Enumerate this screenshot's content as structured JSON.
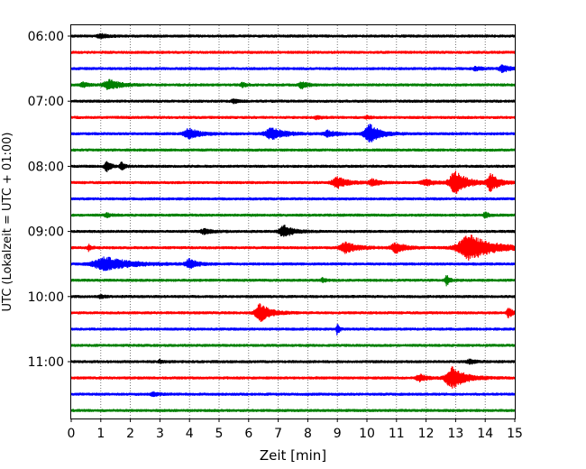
{
  "chart_data": {
    "type": "line",
    "title": "",
    "xlabel": "Zeit  [min]",
    "ylabel": "UTC (Lokalzeit = UTC + 01:00)",
    "xlim": [
      0,
      15
    ],
    "x_ticks": [
      "0",
      "1",
      "2",
      "3",
      "4",
      "5",
      "6",
      "7",
      "8",
      "9",
      "10",
      "11",
      "12",
      "13",
      "14",
      "15"
    ],
    "y_ticks": [
      {
        "label": "06:00",
        "trace_index": 0
      },
      {
        "label": "07:00",
        "trace_index": 4
      },
      {
        "label": "08:00",
        "trace_index": 8
      },
      {
        "label": "09:00",
        "trace_index": 12
      },
      {
        "label": "10:00",
        "trace_index": 16
      },
      {
        "label": "11:00",
        "trace_index": 20
      }
    ],
    "vertical_grid": "dotted",
    "trace_interval_minutes": 15,
    "trace_colors": [
      "#000000",
      "#ff0000",
      "#0000ff",
      "#008000"
    ],
    "series": [
      {
        "start": "06:00",
        "color": "#000000",
        "events": [
          {
            "t": 1.0,
            "amp": 0.2,
            "dur": 0.5
          }
        ]
      },
      {
        "start": "06:15",
        "color": "#ff0000",
        "events": []
      },
      {
        "start": "06:30",
        "color": "#0000ff",
        "events": [
          {
            "t": 14.6,
            "amp": 0.35,
            "dur": 0.5
          },
          {
            "t": 13.7,
            "amp": 0.2,
            "dur": 0.4
          }
        ]
      },
      {
        "start": "06:45",
        "color": "#008000",
        "events": [
          {
            "t": 1.3,
            "amp": 0.5,
            "dur": 0.8
          },
          {
            "t": 0.4,
            "amp": 0.3,
            "dur": 0.3
          },
          {
            "t": 7.8,
            "amp": 0.35,
            "dur": 0.4
          },
          {
            "t": 5.8,
            "amp": 0.2,
            "dur": 0.3
          }
        ]
      },
      {
        "start": "07:00",
        "color": "#000000",
        "events": [
          {
            "t": 5.5,
            "amp": 0.2,
            "dur": 0.3
          }
        ]
      },
      {
        "start": "07:15",
        "color": "#ff0000",
        "events": [
          {
            "t": 8.3,
            "amp": 0.15,
            "dur": 0.3
          },
          {
            "t": 10.0,
            "amp": 0.15,
            "dur": 0.3
          }
        ]
      },
      {
        "start": "07:30",
        "color": "#0000ff",
        "events": [
          {
            "t": 4.0,
            "amp": 0.55,
            "dur": 0.7
          },
          {
            "t": 6.8,
            "amp": 0.6,
            "dur": 0.9
          },
          {
            "t": 10.1,
            "amp": 1.0,
            "dur": 0.7
          },
          {
            "t": 8.7,
            "amp": 0.3,
            "dur": 0.6
          }
        ]
      },
      {
        "start": "07:45",
        "color": "#008000",
        "events": []
      },
      {
        "start": "08:00",
        "color": "#000000",
        "events": [
          {
            "t": 1.2,
            "amp": 0.55,
            "dur": 0.3
          },
          {
            "t": 1.7,
            "amp": 0.45,
            "dur": 0.2
          }
        ]
      },
      {
        "start": "08:15",
        "color": "#ff0000",
        "events": [
          {
            "t": 9.0,
            "amp": 0.6,
            "dur": 0.7
          },
          {
            "t": 10.2,
            "amp": 0.35,
            "dur": 0.5
          },
          {
            "t": 12.0,
            "amp": 0.3,
            "dur": 0.6
          },
          {
            "t": 13.0,
            "amp": 1.25,
            "dur": 0.8
          },
          {
            "t": 14.2,
            "amp": 1.0,
            "dur": 0.5
          }
        ]
      },
      {
        "start": "08:30",
        "color": "#0000ff",
        "events": []
      },
      {
        "start": "08:45",
        "color": "#008000",
        "events": [
          {
            "t": 14.0,
            "amp": 0.4,
            "dur": 0.2
          },
          {
            "t": 1.2,
            "amp": 0.2,
            "dur": 0.3
          }
        ]
      },
      {
        "start": "09:00",
        "color": "#000000",
        "events": [
          {
            "t": 7.2,
            "amp": 0.65,
            "dur": 0.6
          },
          {
            "t": 4.5,
            "amp": 0.25,
            "dur": 0.5
          }
        ]
      },
      {
        "start": "09:15",
        "color": "#ff0000",
        "events": [
          {
            "t": 0.6,
            "amp": 0.35,
            "dur": 0.2
          },
          {
            "t": 9.3,
            "amp": 0.55,
            "dur": 0.8
          },
          {
            "t": 11.0,
            "amp": 0.5,
            "dur": 0.7
          },
          {
            "t": 13.5,
            "amp": 1.35,
            "dur": 1.6
          }
        ]
      },
      {
        "start": "09:30",
        "color": "#0000ff",
        "events": [
          {
            "t": 1.2,
            "amp": 0.7,
            "dur": 1.7
          },
          {
            "t": 4.0,
            "amp": 0.5,
            "dur": 0.5
          }
        ]
      },
      {
        "start": "09:45",
        "color": "#008000",
        "events": [
          {
            "t": 12.7,
            "amp": 0.55,
            "dur": 0.2
          },
          {
            "t": 8.5,
            "amp": 0.2,
            "dur": 0.2
          }
        ]
      },
      {
        "start": "10:00",
        "color": "#000000",
        "events": [
          {
            "t": 1.0,
            "amp": 0.15,
            "dur": 0.3
          }
        ]
      },
      {
        "start": "10:15",
        "color": "#ff0000",
        "events": [
          {
            "t": 6.4,
            "amp": 0.95,
            "dur": 0.7
          },
          {
            "t": 14.8,
            "amp": 0.5,
            "dur": 0.3
          }
        ]
      },
      {
        "start": "10:30",
        "color": "#0000ff",
        "events": [
          {
            "t": 9.0,
            "amp": 0.6,
            "dur": 0.15
          }
        ]
      },
      {
        "start": "10:45",
        "color": "#008000",
        "events": []
      },
      {
        "start": "11:00",
        "color": "#000000",
        "events": [
          {
            "t": 3.0,
            "amp": 0.15,
            "dur": 0.3
          },
          {
            "t": 13.5,
            "amp": 0.2,
            "dur": 0.5
          }
        ]
      },
      {
        "start": "11:15",
        "color": "#ff0000",
        "events": [
          {
            "t": 12.9,
            "amp": 1.15,
            "dur": 0.9
          },
          {
            "t": 11.8,
            "amp": 0.35,
            "dur": 0.5
          }
        ]
      },
      {
        "start": "11:30",
        "color": "#0000ff",
        "events": [
          {
            "t": 2.8,
            "amp": 0.2,
            "dur": 0.4
          }
        ]
      },
      {
        "start": "11:45",
        "color": "#008000",
        "events": []
      }
    ]
  }
}
